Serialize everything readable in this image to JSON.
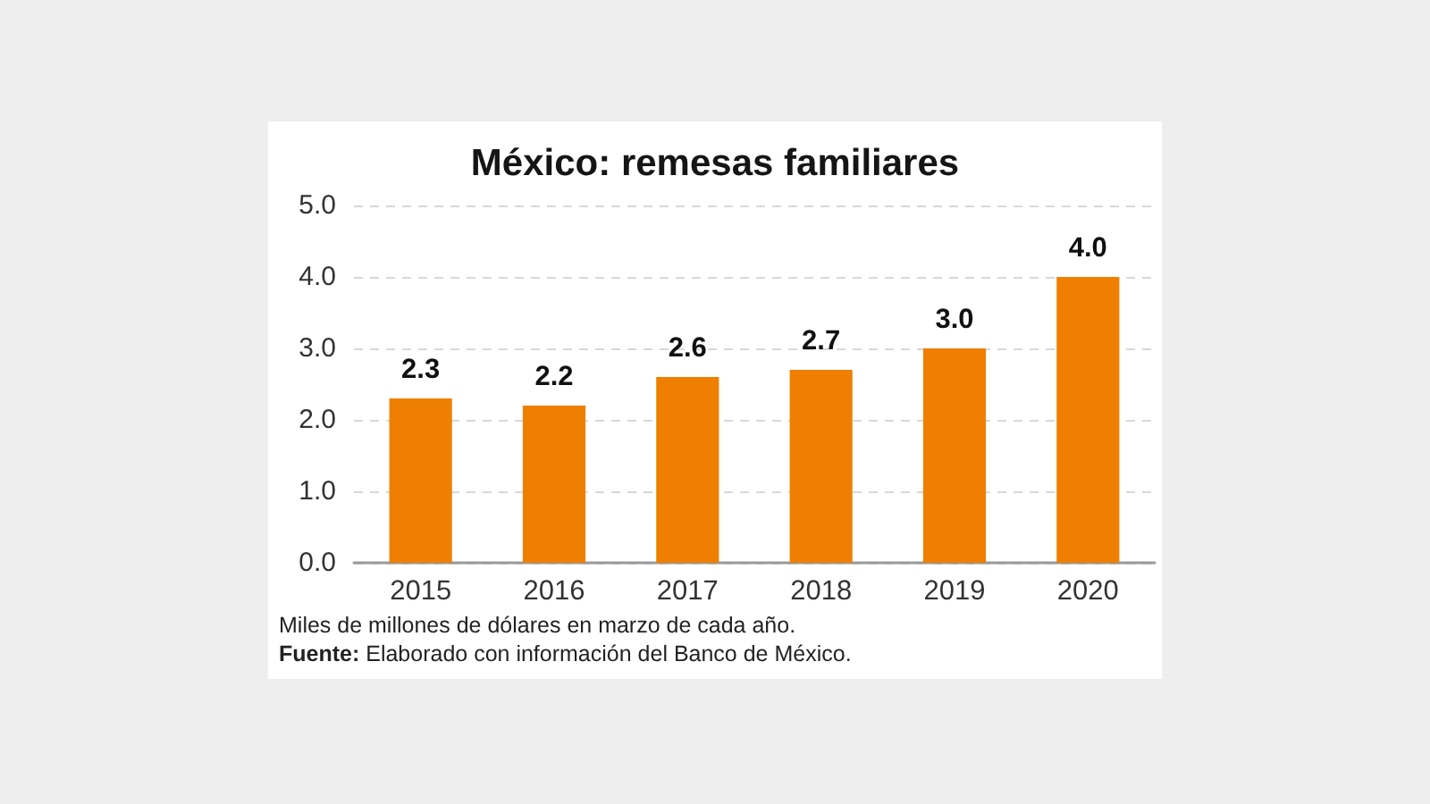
{
  "chart_data": {
    "type": "bar",
    "title": "México: remesas familiares",
    "categories": [
      "2015",
      "2016",
      "2017",
      "2018",
      "2019",
      "2020"
    ],
    "values": [
      2.3,
      2.2,
      2.6,
      2.7,
      3.0,
      4.0
    ],
    "color": "#ef7f00",
    "value_labels": [
      "2.3",
      "2.2",
      "2.6",
      "2.7",
      "3.0",
      "4.0"
    ],
    "ylim": [
      0,
      5
    ],
    "yticks": [
      {
        "value": 0,
        "label": "0.0"
      },
      {
        "value": 1,
        "label": "1.0"
      },
      {
        "value": 2,
        "label": "2.0"
      },
      {
        "value": 3,
        "label": "3.0"
      },
      {
        "value": 4,
        "label": "4.0"
      },
      {
        "value": 5,
        "label": "5.0"
      }
    ],
    "grid": "y",
    "annotations": [
      "Miles de millones de dólares en marzo de cada año.",
      "Fuente: Elaborado con información del Banco de México."
    ]
  }
}
